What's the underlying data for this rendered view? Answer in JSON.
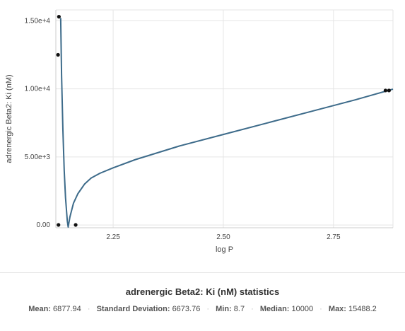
{
  "chart_data": {
    "type": "scatter",
    "title": "",
    "xlabel": "log P",
    "ylabel": "adrenergic Beta2: Ki (nM)",
    "xlim": [
      2.12,
      2.885
    ],
    "ylim": [
      -200,
      15800
    ],
    "grid": true,
    "x_ticks": [
      2.25,
      2.5,
      2.75
    ],
    "x_tick_labels": [
      "2.25",
      "2.50",
      "2.75"
    ],
    "y_ticks": [
      0,
      5000,
      10000,
      15000
    ],
    "y_tick_labels": [
      "0.00",
      "5.00e+3",
      "1.00e+4",
      "1.50e+4"
    ],
    "points": [
      {
        "x": 2.127,
        "y": 15300
      },
      {
        "x": 2.125,
        "y": 12500
      },
      {
        "x": 2.126,
        "y": 8.7
      },
      {
        "x": 2.165,
        "y": 8.7
      },
      {
        "x": 2.868,
        "y": 9880
      },
      {
        "x": 2.876,
        "y": 9880
      }
    ],
    "fit_curve": {
      "x": [
        2.131,
        2.133,
        2.136,
        2.139,
        2.142,
        2.146,
        2.148,
        2.152,
        2.16,
        2.17,
        2.185,
        2.2,
        2.22,
        2.25,
        2.3,
        2.4,
        2.5,
        2.6,
        2.7,
        2.8,
        2.885
      ],
      "y": [
        15200,
        11000,
        7000,
        4000,
        2000,
        300,
        -150,
        600,
        1600,
        2300,
        3000,
        3450,
        3800,
        4200,
        4800,
        5800,
        6650,
        7500,
        8350,
        9200,
        9980
      ]
    },
    "colors": {
      "curve": "#3d6b8a",
      "points": "#111111",
      "grid": "#e5e5e5"
    }
  },
  "stats": {
    "title": "adrenergic Beta2: Ki (nM) statistics",
    "items": [
      {
        "label": "Mean:",
        "value": "6877.94"
      },
      {
        "label": "Standard Deviation:",
        "value": "6673.76"
      },
      {
        "label": "Min:",
        "value": "8.7"
      },
      {
        "label": "Median:",
        "value": "10000"
      },
      {
        "label": "Max:",
        "value": "15488.2"
      }
    ]
  }
}
